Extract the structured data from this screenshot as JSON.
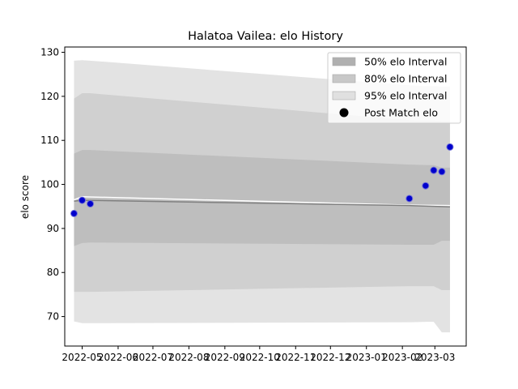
{
  "chart_data": {
    "type": "area",
    "title": "Halatoa Vailea: elo History",
    "xlabel": "",
    "ylabel": "elo score",
    "xlim": [
      "2022-04-16",
      "2023-03-28"
    ],
    "ylim": [
      63.3,
      131.2
    ],
    "yticks": [
      70,
      80,
      90,
      100,
      110,
      120,
      130
    ],
    "xticks": [
      {
        "date": "2022-05-01",
        "label": "2022-05"
      },
      {
        "date": "2022-06-01",
        "label": "2022-06"
      },
      {
        "date": "2022-07-01",
        "label": "2022-07"
      },
      {
        "date": "2022-08-01",
        "label": "2022-08"
      },
      {
        "date": "2022-09-01",
        "label": "2022-09"
      },
      {
        "date": "2022-10-01",
        "label": "2022-10"
      },
      {
        "date": "2022-11-01",
        "label": "2022-11"
      },
      {
        "date": "2022-12-01",
        "label": "2022-12"
      },
      {
        "date": "2023-01-01",
        "label": "2023-01"
      },
      {
        "date": "2023-02-01",
        "label": "2023-02"
      },
      {
        "date": "2023-03-01",
        "label": "2023-03"
      }
    ],
    "grid": false,
    "legend_position": "top-right",
    "legend": [
      {
        "label": "50% elo Interval",
        "kind": "patch",
        "color": "#b0b0b0"
      },
      {
        "label": "80% elo Interval",
        "kind": "patch",
        "color": "#c8c8c8"
      },
      {
        "label": "95% elo Interval",
        "kind": "patch",
        "color": "#e0e0e0"
      },
      {
        "label": "Post Match elo",
        "kind": "marker",
        "color": "#000000"
      }
    ],
    "bands": [
      {
        "name": "95% elo Interval",
        "color": "#e3e3e3",
        "x": [
          "2022-04-24",
          "2022-05-01",
          "2022-05-08",
          "2023-02-07",
          "2023-02-21",
          "2023-02-28",
          "2023-03-07",
          "2023-03-14"
        ],
        "upper": [
          128.1,
          128.2,
          128.1,
          122.5,
          122.3,
          122.3,
          122.2,
          122.2
        ],
        "lower": [
          68.9,
          68.5,
          68.5,
          68.7,
          68.8,
          68.8,
          66.4,
          66.4
        ]
      },
      {
        "name": "80% elo Interval",
        "color": "#d0d0d0",
        "x": [
          "2022-04-24",
          "2022-05-01",
          "2022-05-08",
          "2023-02-07",
          "2023-02-21",
          "2023-02-28",
          "2023-03-07",
          "2023-03-14"
        ],
        "upper": [
          119.5,
          120.7,
          120.7,
          114.6,
          114.5,
          114.5,
          114.4,
          114.4
        ],
        "lower": [
          75.6,
          75.6,
          75.6,
          76.9,
          76.9,
          76.9,
          76.0,
          76.0
        ]
      },
      {
        "name": "50% elo Interval",
        "color": "#bebebe",
        "x": [
          "2022-04-24",
          "2022-05-01",
          "2022-05-08",
          "2023-02-07",
          "2023-02-21",
          "2023-02-28",
          "2023-03-07",
          "2023-03-14"
        ],
        "upper": [
          107.0,
          107.8,
          107.8,
          104.5,
          104.4,
          104.4,
          103.8,
          103.8
        ],
        "lower": [
          86.0,
          86.7,
          86.8,
          86.3,
          86.3,
          86.3,
          87.2,
          87.2
        ]
      }
    ],
    "mean_lines": [
      {
        "color": "#ffffff",
        "x": [
          "2022-04-24",
          "2022-05-01",
          "2023-02-07",
          "2023-03-14"
        ],
        "y": [
          96.5,
          97.2,
          95.3,
          95.2
        ]
      },
      {
        "color": "#808080",
        "x": [
          "2022-04-24",
          "2022-05-01",
          "2023-02-07",
          "2023-03-14"
        ],
        "y": [
          96.2,
          96.4,
          95.2,
          94.9
        ]
      }
    ],
    "series": [
      {
        "name": "Post Match elo",
        "type": "scatter",
        "color": "#0000cc",
        "points": [
          {
            "x": "2022-04-24",
            "y": 93.4
          },
          {
            "x": "2022-05-01",
            "y": 96.4
          },
          {
            "x": "2022-05-08",
            "y": 95.6
          },
          {
            "x": "2023-02-07",
            "y": 96.8
          },
          {
            "x": "2023-02-21",
            "y": 99.7
          },
          {
            "x": "2023-02-28",
            "y": 103.2
          },
          {
            "x": "2023-03-07",
            "y": 102.9
          },
          {
            "x": "2023-03-14",
            "y": 108.5
          }
        ]
      }
    ]
  }
}
